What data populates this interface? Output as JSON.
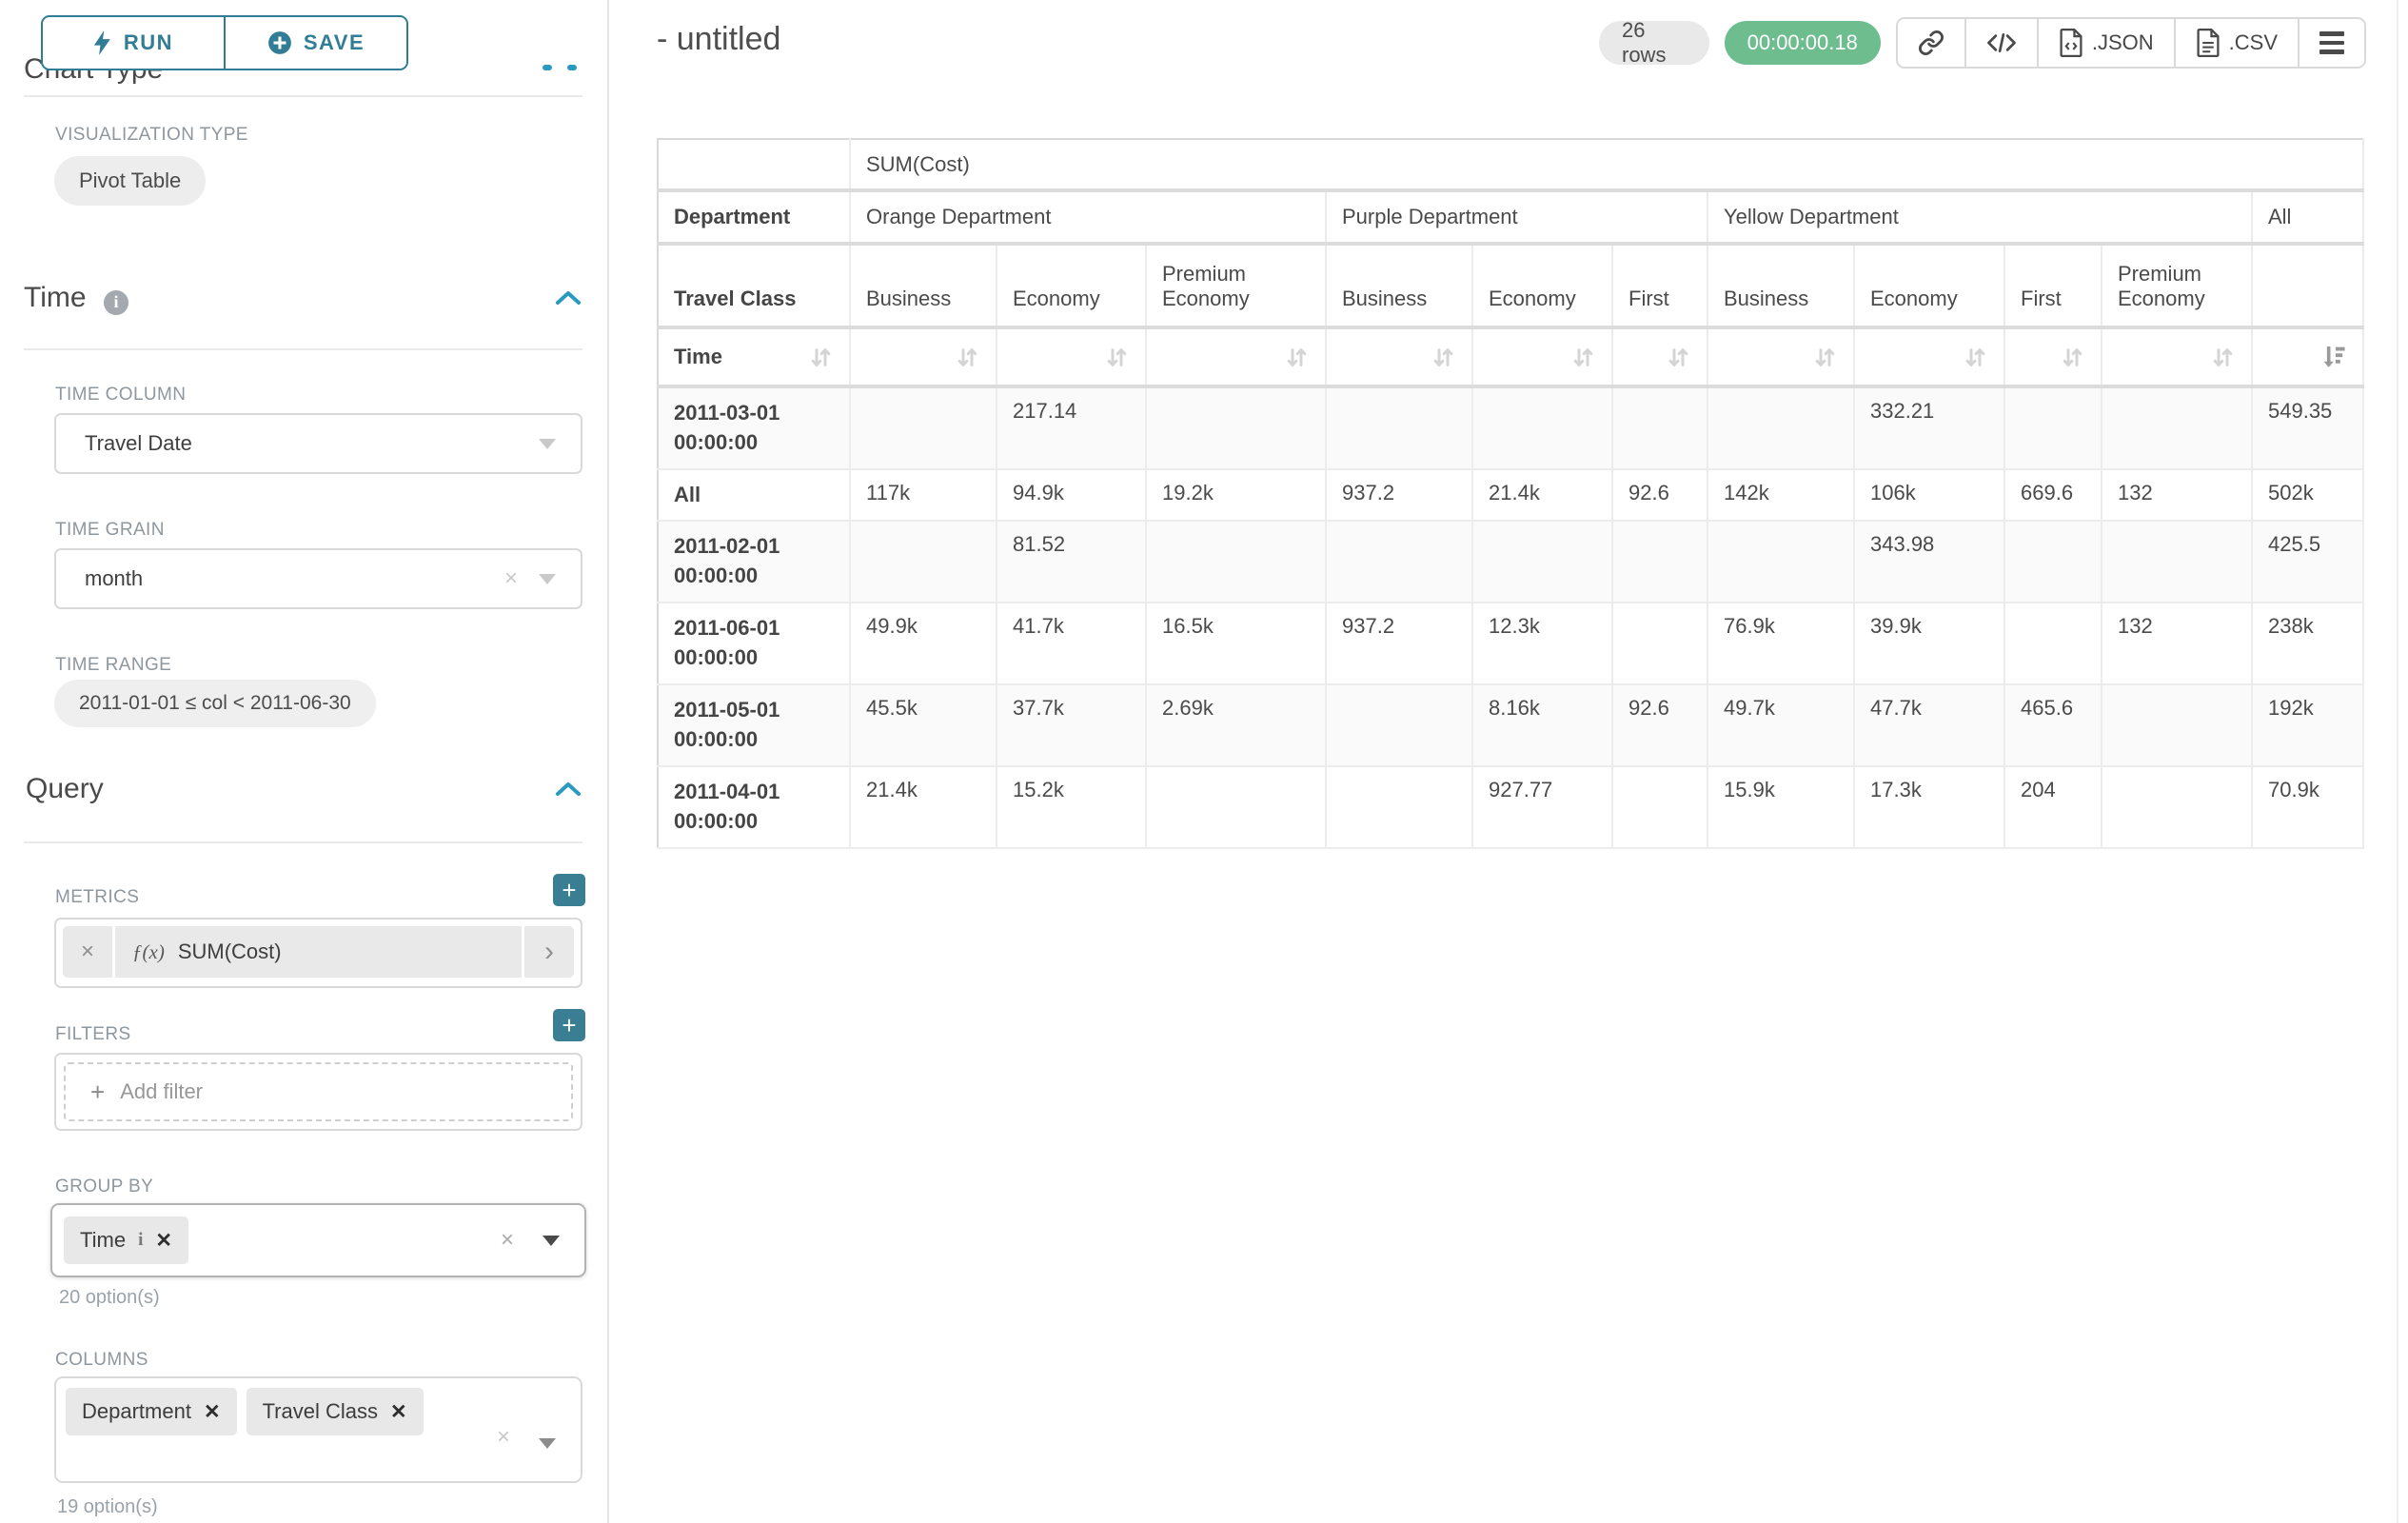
{
  "colors": {
    "accent_teal": "#317d96",
    "accent_blue": "#2a9ac0",
    "plus_button_teal": "#3a7e93",
    "success_green": "#6ebd8f",
    "badge_gray": "#e9e9e9"
  },
  "sidebar": {
    "run_label": "RUN",
    "save_label": "SAVE",
    "chart_type_section_title": "Chart Type",
    "visualization_type_label": "VISUALIZATION TYPE",
    "visualization_type_value": "Pivot Table",
    "time_section": {
      "title": "Time",
      "time_column_label": "TIME COLUMN",
      "time_column_value": "Travel Date",
      "time_grain_label": "TIME GRAIN",
      "time_grain_value": "month",
      "time_range_label": "TIME RANGE",
      "time_range_value": "2011-01-01 ≤ col < 2011-06-30"
    },
    "query_section": {
      "title": "Query",
      "metrics_label": "METRICS",
      "metric_fx": "ƒ(x)",
      "metric_value": "SUM(Cost)",
      "filters_label": "FILTERS",
      "add_filter_label": "Add filter",
      "group_by_label": "GROUP BY",
      "group_by_values": [
        "Time"
      ],
      "group_by_options_hint": "20 option(s)",
      "columns_label": "COLUMNS",
      "columns_values": [
        "Department",
        "Travel Class"
      ],
      "columns_options_hint": "19 option(s)"
    }
  },
  "header": {
    "title": "- untitled",
    "row_count_badge": "26 rows",
    "timer_badge": "00:00:00.18",
    "toolbar_icons": [
      "link-icon",
      "code-icon",
      "json-file-icon",
      "csv-file-icon",
      "menu-icon"
    ],
    "export_json_label": ".JSON",
    "export_csv_label": ".CSV"
  },
  "chart_data": {
    "type": "table",
    "metric_header": "SUM(Cost)",
    "column_dimension": "Department",
    "sub_dimension": "Travel Class",
    "row_dimension": "Time",
    "column_groups": [
      {
        "label": "Orange Department",
        "children": [
          "Business",
          "Economy",
          "Premium Economy"
        ]
      },
      {
        "label": "Purple Department",
        "children": [
          "Business",
          "Economy",
          "First"
        ]
      },
      {
        "label": "Yellow Department",
        "children": [
          "Business",
          "Economy",
          "First",
          "Premium Economy"
        ]
      },
      {
        "label": "All",
        "children": [
          ""
        ]
      }
    ],
    "sorted_column": "All",
    "sort_direction": "desc",
    "rows": [
      {
        "label": "2011-03-01 00:00:00",
        "values": [
          "",
          "217.14",
          "",
          "",
          "",
          "",
          "",
          "332.21",
          "",
          "",
          "549.35"
        ]
      },
      {
        "label": "All",
        "values": [
          "117k",
          "94.9k",
          "19.2k",
          "937.2",
          "21.4k",
          "92.6",
          "142k",
          "106k",
          "669.6",
          "132",
          "502k"
        ]
      },
      {
        "label": "2011-02-01 00:00:00",
        "values": [
          "",
          "81.52",
          "",
          "",
          "",
          "",
          "",
          "343.98",
          "",
          "",
          "425.5"
        ]
      },
      {
        "label": "2011-06-01 00:00:00",
        "values": [
          "49.9k",
          "41.7k",
          "16.5k",
          "937.2",
          "12.3k",
          "",
          "76.9k",
          "39.9k",
          "",
          "132",
          "238k"
        ]
      },
      {
        "label": "2011-05-01 00:00:00",
        "values": [
          "45.5k",
          "37.7k",
          "2.69k",
          "",
          "8.16k",
          "92.6",
          "49.7k",
          "47.7k",
          "465.6",
          "",
          "192k"
        ]
      },
      {
        "label": "2011-04-01 00:00:00",
        "values": [
          "21.4k",
          "15.2k",
          "",
          "",
          "927.77",
          "",
          "15.9k",
          "17.3k",
          "204",
          "",
          "70.9k"
        ]
      }
    ]
  }
}
